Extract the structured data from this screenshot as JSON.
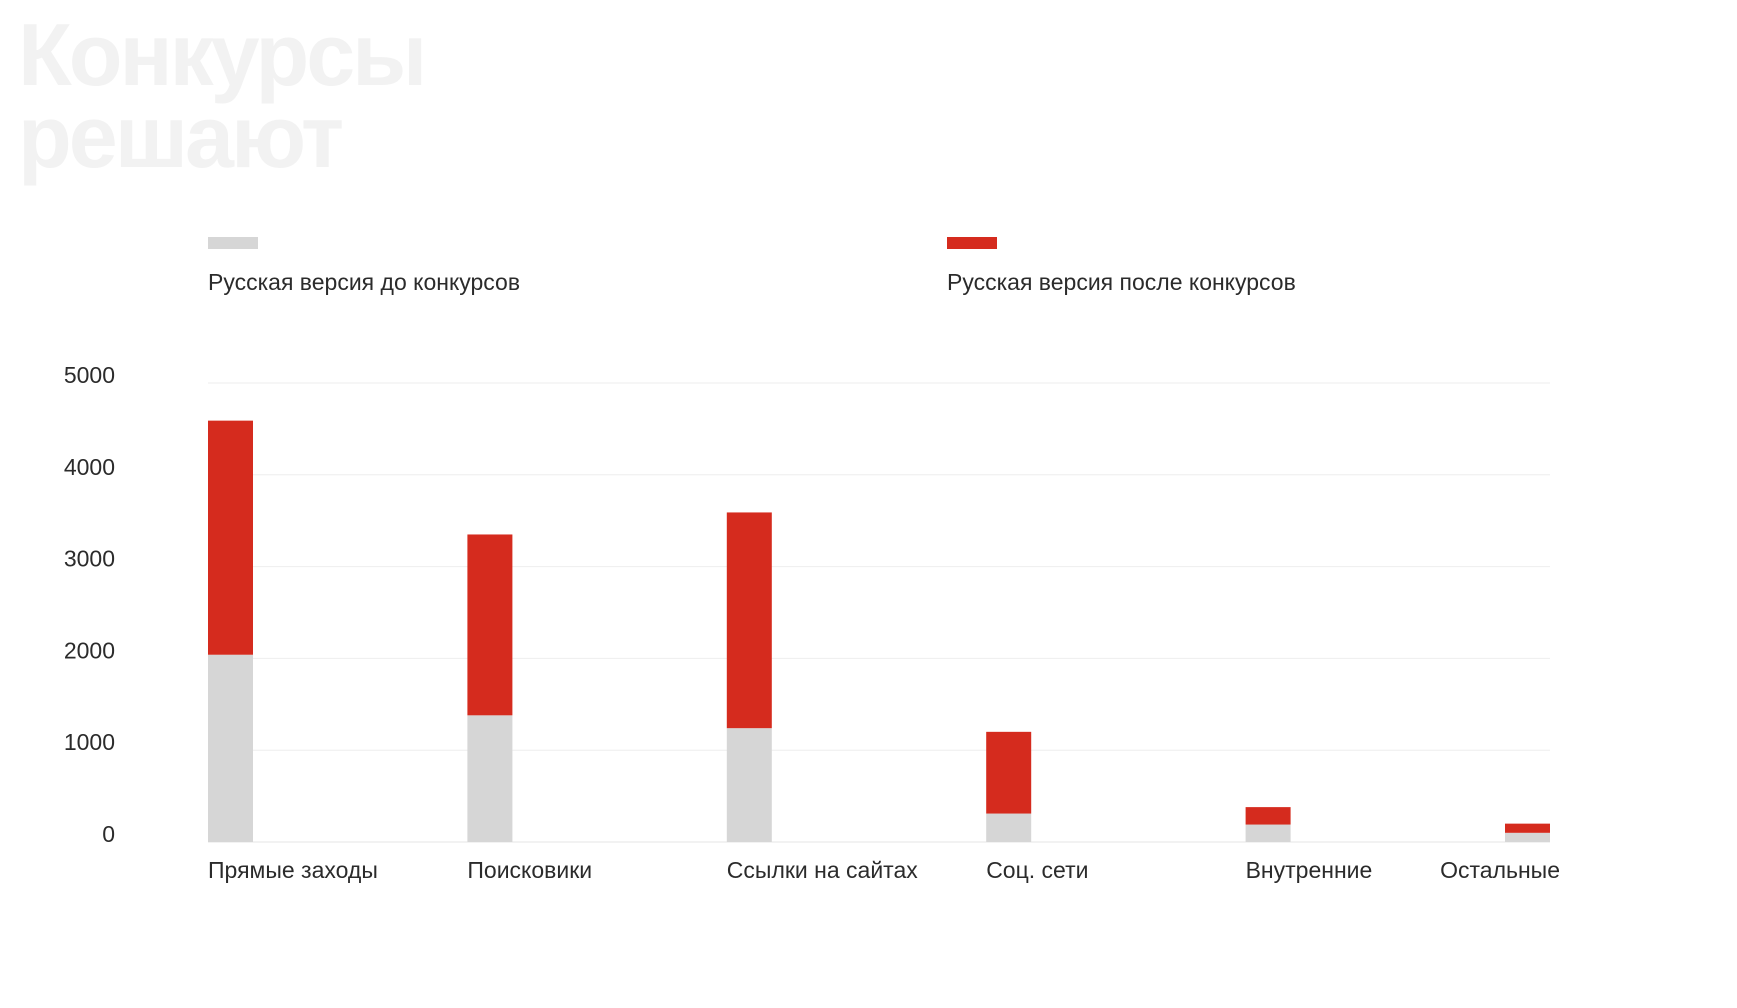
{
  "header": {
    "title_line1": "Конкурсы",
    "title_line2": "решают"
  },
  "legend": {
    "items": [
      {
        "label": "Русская версия до конкурсов",
        "color": "#d6d6d6"
      },
      {
        "label": "Русская версия после конкурсов",
        "color": "#d52b1e"
      }
    ]
  },
  "chart_data": {
    "type": "bar",
    "stacked": true,
    "categories": [
      "Прямые заходы",
      "Поисковики",
      "Ссылки на сайтах",
      "Соц. сети",
      "Внутренние",
      "Остальные"
    ],
    "series": [
      {
        "name": "Русская версия до конкурсов",
        "color": "#d6d6d6",
        "values": [
          2040,
          1380,
          1240,
          310,
          190,
          100
        ]
      },
      {
        "name": "Русская версия после конкурсов",
        "color": "#d52b1e",
        "values": [
          2550,
          1970,
          2350,
          890,
          190,
          100
        ]
      }
    ],
    "yticks": [
      "0",
      "1000",
      "2000",
      "3000",
      "4000",
      "5000"
    ],
    "ylim": [
      0,
      5000
    ],
    "grid": true,
    "legend_position": "top"
  }
}
